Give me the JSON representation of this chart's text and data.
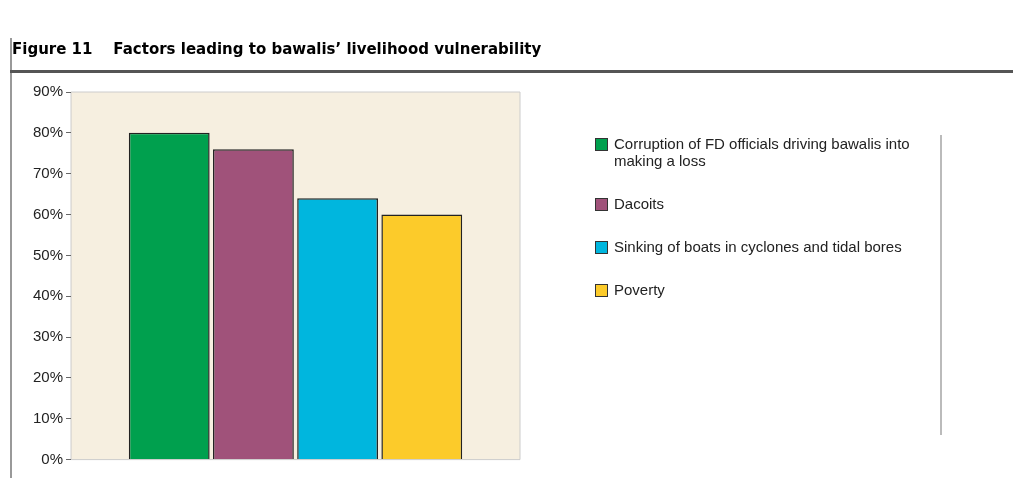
{
  "chart_data": {
    "type": "bar",
    "title": "Figure 11    Factors leading to bawalis’ livelihood vulnerability",
    "categories": [
      null
    ],
    "series": [
      {
        "name": "Corruption of FD officials driving bawalis into making a loss",
        "color": "#00a04e",
        "values": [
          80
        ]
      },
      {
        "name": "Dacoits",
        "color": "#a0527a",
        "values": [
          76
        ]
      },
      {
        "name": "Sinking of boats in cyclones and tidal bores",
        "color": "#00b6de",
        "values": [
          64
        ]
      },
      {
        "name": "Poverty",
        "color": "#fccb2a",
        "values": [
          60
        ]
      }
    ],
    "ylim": [
      0,
      90
    ],
    "yticks": [
      {
        "value": 0,
        "label": "0%"
      },
      {
        "value": 10,
        "label": "10%"
      },
      {
        "value": 20,
        "label": "20%"
      },
      {
        "value": 30,
        "label": "30%"
      },
      {
        "value": 40,
        "label": "40%"
      },
      {
        "value": 50,
        "label": "50%"
      },
      {
        "value": 60,
        "label": "60%"
      },
      {
        "value": 70,
        "label": "70%"
      },
      {
        "value": 80,
        "label": "80%"
      },
      {
        "value": 90,
        "label": "90%"
      }
    ],
    "grid": false,
    "legend": "right"
  }
}
